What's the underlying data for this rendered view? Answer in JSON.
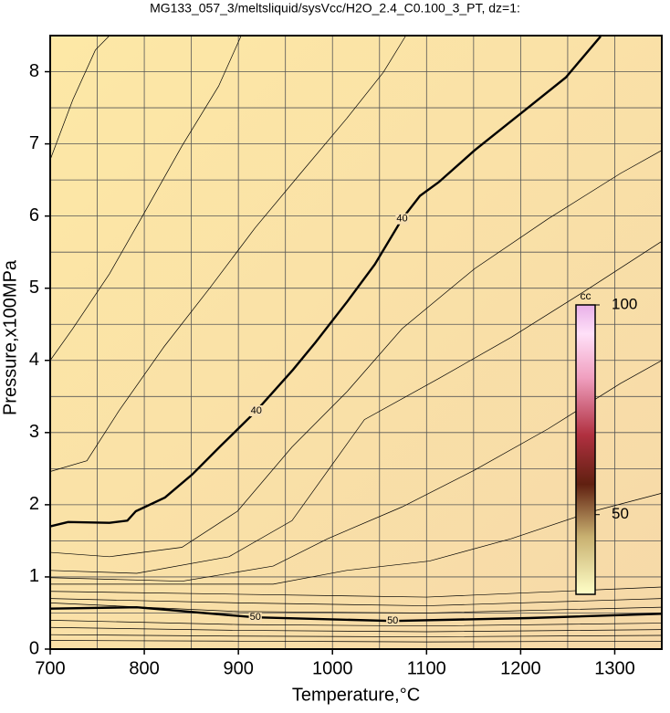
{
  "chart_data": {
    "type": "contour",
    "title": "MG133_057_3/meltsliquid/sysVcc/H2O_2.4_C0.100_3_PT, dz=1:",
    "xlabel": "Temperature,°C",
    "ylabel": "Pressure,x100MPa",
    "xlim": [
      700,
      1350
    ],
    "ylim": [
      0,
      8.5
    ],
    "xticks": [
      700,
      800,
      900,
      1000,
      1100,
      1200,
      1300
    ],
    "yticks": [
      0,
      1,
      2,
      3,
      4,
      5,
      6,
      7,
      8
    ],
    "x_minor_ticks": [
      750,
      850,
      950,
      1050,
      1150,
      1250
    ],
    "y_minor_ticks": [
      0.5,
      1.5,
      2.5,
      3.5,
      4.5,
      5.5,
      6.5,
      7.5
    ],
    "grid": true,
    "colorbar": {
      "label": "cc",
      "lim": [
        31,
        100
      ],
      "ticks": [
        50,
        100
      ]
    },
    "series": [
      {
        "level": 40,
        "x": [
          700,
          719,
          763,
          782,
          791,
          822,
          851,
          880,
          919,
          958,
          982,
          1016,
          1045,
          1074,
          1093,
          1113,
          1151,
          1200,
          1248,
          1285
        ],
        "y": [
          1.7,
          1.76,
          1.75,
          1.78,
          1.91,
          2.1,
          2.42,
          2.8,
          3.3,
          3.87,
          4.25,
          4.82,
          5.33,
          5.96,
          6.28,
          6.47,
          6.91,
          7.42,
          7.92,
          8.49
        ]
      },
      {
        "level": 50,
        "x": [
          700,
          792,
          918,
          1064,
          1209,
          1350
        ],
        "y": [
          0.56,
          0.58,
          0.44,
          0.39,
          0.43,
          0.49
        ]
      },
      {
        "x": [
          700,
          724,
          748,
          763
        ],
        "y": [
          6.78,
          7.61,
          8.3,
          8.5
        ]
      },
      {
        "x": [
          700,
          724,
          763,
          802,
          840,
          879,
          903
        ],
        "y": [
          4.0,
          4.44,
          5.2,
          6.09,
          6.97,
          7.8,
          8.5
        ]
      },
      {
        "x": [
          700,
          739,
          773,
          821,
          870,
          918,
          966,
          1015,
          1054,
          1078
        ],
        "y": [
          2.46,
          2.61,
          3.3,
          4.19,
          5.01,
          5.84,
          6.59,
          7.35,
          7.99,
          8.5
        ]
      },
      {
        "x": [
          700,
          763,
          840,
          899,
          957,
          1015,
          1074,
          1151,
          1229,
          1306,
          1350
        ],
        "y": [
          1.34,
          1.28,
          1.41,
          1.91,
          2.8,
          3.56,
          4.44,
          5.27,
          5.96,
          6.59,
          6.91
        ]
      },
      {
        "x": [
          700,
          792,
          890,
          957,
          1034,
          1113,
          1190,
          1267,
          1350
        ],
        "y": [
          1.09,
          1.05,
          1.28,
          1.78,
          3.18,
          3.75,
          4.32,
          4.95,
          5.65
        ]
      },
      {
        "x": [
          700,
          840,
          937,
          995,
          1074,
          1151,
          1229,
          1306,
          1350
        ],
        "y": [
          0.99,
          0.94,
          1.15,
          1.53,
          1.97,
          2.48,
          3.05,
          3.68,
          4.0
        ]
      },
      {
        "x": [
          700,
          937,
          1015,
          1103,
          1190,
          1277,
          1350
        ],
        "y": [
          0.9,
          0.9,
          1.09,
          1.22,
          1.53,
          1.91,
          2.16
        ]
      },
      {
        "x": [
          700,
          900,
          1100,
          1350
        ],
        "y": [
          0.8,
          0.76,
          0.72,
          0.86
        ]
      },
      {
        "x": [
          700,
          900,
          1100,
          1350
        ],
        "y": [
          0.7,
          0.64,
          0.6,
          0.7
        ]
      },
      {
        "x": [
          700,
          900,
          1100,
          1350
        ],
        "y": [
          0.64,
          0.52,
          0.5,
          0.58
        ]
      },
      {
        "x": [
          700,
          900,
          1100,
          1350
        ],
        "y": [
          0.4,
          0.34,
          0.32,
          0.36
        ]
      },
      {
        "x": [
          700,
          900,
          1100,
          1350
        ],
        "y": [
          0.3,
          0.26,
          0.24,
          0.27
        ]
      },
      {
        "x": [
          700,
          900,
          1100,
          1350
        ],
        "y": [
          0.2,
          0.18,
          0.17,
          0.19
        ]
      },
      {
        "x": [
          700,
          900,
          1100,
          1350
        ],
        "y": [
          0.12,
          0.11,
          0.1,
          0.11
        ]
      }
    ]
  }
}
